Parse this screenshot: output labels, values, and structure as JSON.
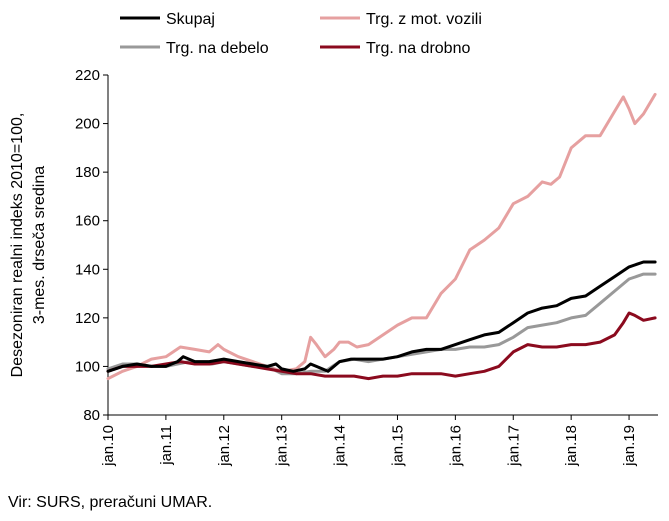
{
  "chart_data": {
    "type": "line",
    "ylabel": [
      "Desezoniran realni indeks 2010=100,",
      "3-mes. drseča sredina"
    ],
    "ylim": [
      80,
      220
    ],
    "yticks": [
      80,
      100,
      120,
      140,
      160,
      180,
      200,
      220
    ],
    "xlim": [
      2010.0,
      2019.5
    ],
    "xtick_labels": [
      "jan.10",
      "jan.11",
      "jan.12",
      "jan.13",
      "jan.14",
      "jan.15",
      "jan.16",
      "jan.17",
      "jan.18",
      "jan.19"
    ],
    "grid": false,
    "legend": "top",
    "series": [
      {
        "name": "Skupaj",
        "color": "#000000",
        "points": [
          [
            2010.0,
            98
          ],
          [
            2010.25,
            100
          ],
          [
            2010.5,
            101
          ],
          [
            2010.75,
            100
          ],
          [
            2011.0,
            100
          ],
          [
            2011.2,
            102
          ],
          [
            2011.3,
            104
          ],
          [
            2011.5,
            102
          ],
          [
            2011.75,
            102
          ],
          [
            2012.0,
            103
          ],
          [
            2012.25,
            102
          ],
          [
            2012.5,
            101
          ],
          [
            2012.75,
            100
          ],
          [
            2012.9,
            101
          ],
          [
            2013.0,
            99
          ],
          [
            2013.2,
            98
          ],
          [
            2013.4,
            99
          ],
          [
            2013.5,
            101
          ],
          [
            2013.6,
            100
          ],
          [
            2013.8,
            98
          ],
          [
            2014.0,
            102
          ],
          [
            2014.2,
            103
          ],
          [
            2014.5,
            103
          ],
          [
            2014.75,
            103
          ],
          [
            2015.0,
            104
          ],
          [
            2015.25,
            106
          ],
          [
            2015.5,
            107
          ],
          [
            2015.75,
            107
          ],
          [
            2016.0,
            109
          ],
          [
            2016.25,
            111
          ],
          [
            2016.5,
            113
          ],
          [
            2016.75,
            114
          ],
          [
            2017.0,
            118
          ],
          [
            2017.25,
            122
          ],
          [
            2017.5,
            124
          ],
          [
            2017.75,
            125
          ],
          [
            2018.0,
            128
          ],
          [
            2018.25,
            129
          ],
          [
            2018.5,
            133
          ],
          [
            2018.75,
            137
          ],
          [
            2019.0,
            141
          ],
          [
            2019.25,
            143
          ],
          [
            2019.45,
            143
          ]
        ]
      },
      {
        "name": "Trg. na debelo",
        "color": "#999999",
        "points": [
          [
            2010.0,
            99
          ],
          [
            2010.25,
            101
          ],
          [
            2010.5,
            101
          ],
          [
            2010.75,
            100
          ],
          [
            2011.0,
            100
          ],
          [
            2011.2,
            101
          ],
          [
            2011.4,
            102
          ],
          [
            2011.6,
            101
          ],
          [
            2011.8,
            101
          ],
          [
            2012.0,
            102
          ],
          [
            2012.25,
            101
          ],
          [
            2012.5,
            100
          ],
          [
            2012.75,
            100
          ],
          [
            2013.0,
            97
          ],
          [
            2013.25,
            97
          ],
          [
            2013.5,
            98
          ],
          [
            2013.75,
            98
          ],
          [
            2014.0,
            102
          ],
          [
            2014.25,
            103
          ],
          [
            2014.5,
            102
          ],
          [
            2014.75,
            103
          ],
          [
            2015.0,
            104
          ],
          [
            2015.25,
            105
          ],
          [
            2015.5,
            106
          ],
          [
            2015.75,
            107
          ],
          [
            2016.0,
            107
          ],
          [
            2016.25,
            108
          ],
          [
            2016.5,
            108
          ],
          [
            2016.75,
            109
          ],
          [
            2017.0,
            112
          ],
          [
            2017.25,
            116
          ],
          [
            2017.5,
            117
          ],
          [
            2017.75,
            118
          ],
          [
            2018.0,
            120
          ],
          [
            2018.25,
            121
          ],
          [
            2018.5,
            126
          ],
          [
            2018.75,
            131
          ],
          [
            2019.0,
            136
          ],
          [
            2019.25,
            138
          ],
          [
            2019.45,
            138
          ]
        ]
      },
      {
        "name": "Trg. z mot. vozili",
        "color": "#e6a0a0",
        "points": [
          [
            2010.0,
            95
          ],
          [
            2010.25,
            98
          ],
          [
            2010.5,
            100
          ],
          [
            2010.75,
            103
          ],
          [
            2011.0,
            104
          ],
          [
            2011.25,
            108
          ],
          [
            2011.5,
            107
          ],
          [
            2011.75,
            106
          ],
          [
            2011.9,
            109
          ],
          [
            2012.0,
            107
          ],
          [
            2012.25,
            104
          ],
          [
            2012.5,
            102
          ],
          [
            2012.75,
            100
          ],
          [
            2013.0,
            98
          ],
          [
            2013.25,
            99
          ],
          [
            2013.4,
            102
          ],
          [
            2013.5,
            112
          ],
          [
            2013.6,
            109
          ],
          [
            2013.75,
            104
          ],
          [
            2013.9,
            107
          ],
          [
            2014.0,
            110
          ],
          [
            2014.15,
            110
          ],
          [
            2014.3,
            108
          ],
          [
            2014.5,
            109
          ],
          [
            2014.75,
            113
          ],
          [
            2015.0,
            117
          ],
          [
            2015.25,
            120
          ],
          [
            2015.5,
            120
          ],
          [
            2015.75,
            130
          ],
          [
            2016.0,
            136
          ],
          [
            2016.25,
            148
          ],
          [
            2016.5,
            152
          ],
          [
            2016.75,
            157
          ],
          [
            2017.0,
            167
          ],
          [
            2017.25,
            170
          ],
          [
            2017.5,
            176
          ],
          [
            2017.65,
            175
          ],
          [
            2017.8,
            178
          ],
          [
            2018.0,
            190
          ],
          [
            2018.25,
            195
          ],
          [
            2018.5,
            195
          ],
          [
            2018.75,
            205
          ],
          [
            2018.9,
            211
          ],
          [
            2019.0,
            206
          ],
          [
            2019.1,
            200
          ],
          [
            2019.25,
            204
          ],
          [
            2019.45,
            212
          ]
        ]
      },
      {
        "name": "Trg. na drobno",
        "color": "#8b0a1e",
        "points": [
          [
            2010.0,
            98
          ],
          [
            2010.25,
            100
          ],
          [
            2010.5,
            100
          ],
          [
            2010.75,
            100
          ],
          [
            2011.0,
            101
          ],
          [
            2011.25,
            102
          ],
          [
            2011.5,
            101
          ],
          [
            2011.75,
            101
          ],
          [
            2012.0,
            102
          ],
          [
            2012.25,
            101
          ],
          [
            2012.5,
            100
          ],
          [
            2012.75,
            99
          ],
          [
            2013.0,
            98
          ],
          [
            2013.25,
            97
          ],
          [
            2013.5,
            97
          ],
          [
            2013.75,
            96
          ],
          [
            2014.0,
            96
          ],
          [
            2014.25,
            96
          ],
          [
            2014.5,
            95
          ],
          [
            2014.75,
            96
          ],
          [
            2015.0,
            96
          ],
          [
            2015.25,
            97
          ],
          [
            2015.5,
            97
          ],
          [
            2015.75,
            97
          ],
          [
            2016.0,
            96
          ],
          [
            2016.25,
            97
          ],
          [
            2016.5,
            98
          ],
          [
            2016.75,
            100
          ],
          [
            2017.0,
            106
          ],
          [
            2017.25,
            109
          ],
          [
            2017.5,
            108
          ],
          [
            2017.75,
            108
          ],
          [
            2018.0,
            109
          ],
          [
            2018.25,
            109
          ],
          [
            2018.5,
            110
          ],
          [
            2018.75,
            113
          ],
          [
            2018.9,
            118
          ],
          [
            2019.0,
            122
          ],
          [
            2019.1,
            121
          ],
          [
            2019.25,
            119
          ],
          [
            2019.45,
            120
          ]
        ]
      }
    ]
  },
  "source": "Vir: SURS, preračuni UMAR."
}
